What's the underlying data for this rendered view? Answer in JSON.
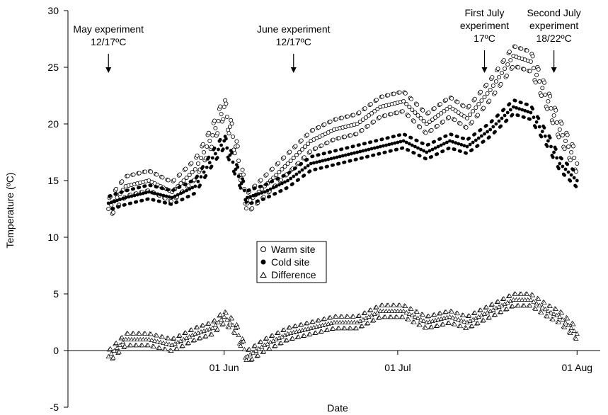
{
  "chart_data": {
    "type": "scatter",
    "xlabel": "Date",
    "ylabel": "Temperature (ºC)",
    "ylim": [
      -5,
      30
    ],
    "yticks": [
      -5,
      0,
      5,
      10,
      15,
      20,
      25,
      30
    ],
    "xlim": [
      "2010-05-05",
      "2010-08-05"
    ],
    "xticks": [
      {
        "date": "2010-06-01",
        "label": "01 Jun"
      },
      {
        "date": "2010-07-01",
        "label": "01 Jul"
      },
      {
        "date": "2010-08-01",
        "label": "01 Aug"
      }
    ],
    "grid": false,
    "legend": {
      "position": "center",
      "entries": [
        {
          "label": "Warm site",
          "marker": "open-circle"
        },
        {
          "label": "Cold site",
          "marker": "filled-circle"
        },
        {
          "label": "Difference",
          "marker": "open-triangle"
        }
      ]
    },
    "annotations": [
      {
        "lines": [
          "May experiment",
          "12/17ºC"
        ],
        "date": "2010-05-12",
        "arrow_tip": 24.5
      },
      {
        "lines": [
          "June experiment",
          "12/17ºC"
        ],
        "date": "2010-06-13",
        "arrow_tip": 24.5
      },
      {
        "lines": [
          "First July",
          "experiment",
          "17ºC"
        ],
        "date": "2010-07-16",
        "arrow_tip": 24.5
      },
      {
        "lines": [
          "Second July",
          "experiment",
          "18/22ºC"
        ],
        "date": "2010-07-28",
        "arrow_tip": 24.5
      }
    ],
    "series": [
      {
        "name": "Warm site",
        "marker": "open-circle",
        "x": [
          "2010-05-12",
          "2010-05-15",
          "2010-05-19",
          "2010-05-23",
          "2010-05-27",
          "2010-05-30",
          "2010-06-01",
          "2010-06-03",
          "2010-06-05",
          "2010-06-08",
          "2010-06-12",
          "2010-06-16",
          "2010-06-20",
          "2010-06-24",
          "2010-06-28",
          "2010-07-02",
          "2010-07-06",
          "2010-07-10",
          "2010-07-13",
          "2010-07-17",
          "2010-07-21",
          "2010-07-24",
          "2010-07-27",
          "2010-07-29",
          "2010-08-01"
        ],
        "y": [
          12.5,
          14.5,
          15.0,
          14.0,
          16.0,
          19.0,
          21.5,
          18.0,
          13.0,
          14.5,
          16.5,
          18.5,
          19.5,
          20.0,
          21.5,
          22.0,
          20.0,
          21.5,
          20.5,
          23.0,
          26.0,
          25.5,
          22.0,
          19.5,
          16.5
        ]
      },
      {
        "name": "Cold site",
        "marker": "filled-circle",
        "x": [
          "2010-05-12",
          "2010-05-15",
          "2010-05-19",
          "2010-05-23",
          "2010-05-27",
          "2010-05-30",
          "2010-06-01",
          "2010-06-03",
          "2010-06-05",
          "2010-06-08",
          "2010-06-12",
          "2010-06-16",
          "2010-06-20",
          "2010-06-24",
          "2010-06-28",
          "2010-07-02",
          "2010-07-06",
          "2010-07-10",
          "2010-07-13",
          "2010-07-17",
          "2010-07-21",
          "2010-07-24",
          "2010-07-27",
          "2010-07-29",
          "2010-08-01"
        ],
        "y": [
          13.0,
          13.5,
          14.0,
          13.5,
          14.5,
          17.0,
          18.5,
          16.0,
          13.5,
          14.0,
          15.0,
          16.5,
          17.0,
          17.5,
          18.0,
          18.5,
          17.5,
          18.5,
          18.0,
          19.5,
          21.5,
          21.0,
          18.5,
          16.5,
          15.0
        ]
      },
      {
        "name": "Difference",
        "marker": "open-triangle",
        "x": [
          "2010-05-12",
          "2010-05-15",
          "2010-05-19",
          "2010-05-23",
          "2010-05-27",
          "2010-05-30",
          "2010-06-01",
          "2010-06-03",
          "2010-06-05",
          "2010-06-08",
          "2010-06-12",
          "2010-06-16",
          "2010-06-20",
          "2010-06-24",
          "2010-06-28",
          "2010-07-02",
          "2010-07-06",
          "2010-07-10",
          "2010-07-13",
          "2010-07-17",
          "2010-07-21",
          "2010-07-24",
          "2010-07-27",
          "2010-07-29",
          "2010-08-01"
        ],
        "y": [
          -0.5,
          1.0,
          1.0,
          0.5,
          1.5,
          2.0,
          3.0,
          2.0,
          -0.5,
          0.5,
          1.5,
          2.0,
          2.5,
          2.5,
          3.5,
          3.5,
          2.5,
          3.0,
          2.5,
          3.5,
          4.5,
          4.5,
          3.5,
          3.0,
          1.5
        ]
      }
    ]
  }
}
